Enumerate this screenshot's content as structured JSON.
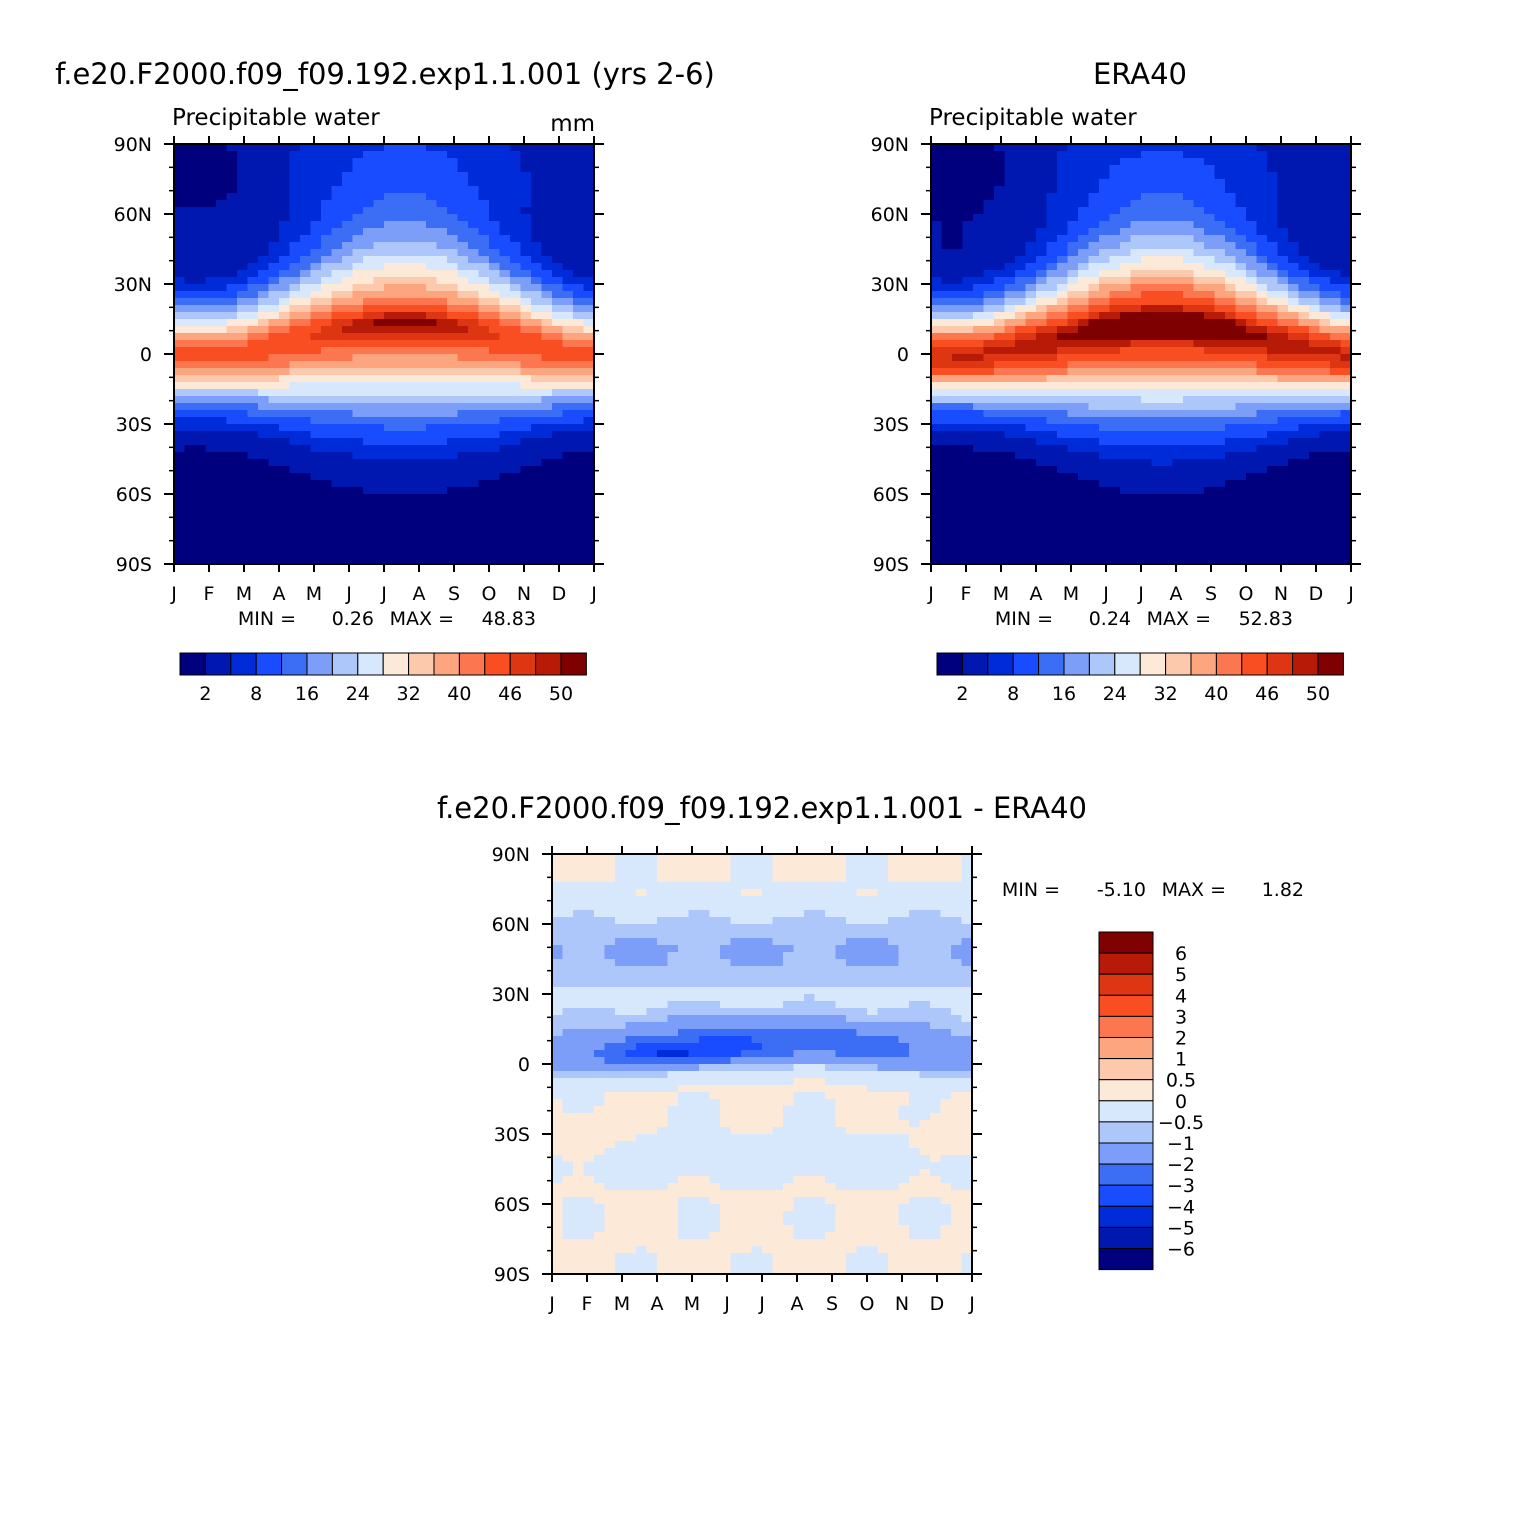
{
  "chart_data": [
    {
      "type": "heatmap",
      "title": "f.e20.F2000.f09_f09.192.exp1.1.001 (yrs 2-6)",
      "subtitle": "Precipitable water",
      "units": "mm",
      "x": [
        "J",
        "F",
        "M",
        "A",
        "M",
        "J",
        "J",
        "A",
        "S",
        "O",
        "N",
        "D",
        "J"
      ],
      "y_ticks": [
        "90N",
        "60N",
        "30N",
        "0",
        "30S",
        "60S",
        "90S"
      ],
      "stats": {
        "min_label": "MIN =",
        "min_value": "0.26",
        "max_label": "MAX =",
        "max_value": "48.83"
      },
      "field": {
        "min": 0.26,
        "max": 48.83,
        "peak_value": 48.5,
        "equator_value": 41.5,
        "polar_value_south": 1.0,
        "polar_value_north": 3.5
      },
      "colorbar": {
        "ticks": [
          "2",
          "8",
          "16",
          "24",
          "32",
          "40",
          "46",
          "50"
        ],
        "colors": [
          "#00007f",
          "#0018b0",
          "#002bd9",
          "#1a4cff",
          "#3c6df5",
          "#7c9ef8",
          "#adc7fb",
          "#d7e8fd",
          "#fde9d8",
          "#fdc9ad",
          "#fca57f",
          "#fc7750",
          "#f94d22",
          "#de3512",
          "#b71a06",
          "#7f0000"
        ]
      }
    },
    {
      "type": "heatmap",
      "title": "ERA40",
      "subtitle": "Precipitable water",
      "x": [
        "J",
        "F",
        "M",
        "A",
        "M",
        "J",
        "J",
        "A",
        "S",
        "O",
        "N",
        "D",
        "J"
      ],
      "y_ticks": [
        "90N",
        "60N",
        "30N",
        "0",
        "30S",
        "60S",
        "90S"
      ],
      "stats": {
        "min_label": "MIN =",
        "min_value": "0.24",
        "max_label": "MAX =",
        "max_value": "52.83"
      },
      "field": {
        "min": 0.24,
        "max": 52.83,
        "peak_value": 52.5,
        "equator_value": 46.0,
        "polar_value_south": 0.8,
        "polar_value_north": 3.0
      },
      "colorbar": {
        "ticks": [
          "2",
          "8",
          "16",
          "24",
          "32",
          "40",
          "46",
          "50"
        ],
        "colors": [
          "#00007f",
          "#0018b0",
          "#002bd9",
          "#1a4cff",
          "#3c6df5",
          "#7c9ef8",
          "#adc7fb",
          "#d7e8fd",
          "#fde9d8",
          "#fdc9ad",
          "#fca57f",
          "#fc7750",
          "#f94d22",
          "#de3512",
          "#b71a06",
          "#7f0000"
        ]
      }
    },
    {
      "type": "heatmap",
      "title": "f.e20.F2000.f09_f09.192.exp1.1.001 - ERA40",
      "x": [
        "J",
        "F",
        "M",
        "A",
        "M",
        "J",
        "J",
        "A",
        "S",
        "O",
        "N",
        "D",
        "J"
      ],
      "y_ticks": [
        "90N",
        "60N",
        "30N",
        "0",
        "30S",
        "60S",
        "90S"
      ],
      "stats": {
        "min_label": "MIN =",
        "min_value": "-5.10",
        "max_label": "MAX =",
        "max_value": "1.82"
      },
      "field": {
        "min": -5.1,
        "max": 1.82
      },
      "colorbar": {
        "ticks": [
          "6",
          "5",
          "4",
          "3",
          "2",
          "1",
          "0.5",
          "0",
          "-0.5",
          "-1",
          "-2",
          "-3",
          "-4",
          "-5",
          "-6"
        ],
        "colors": [
          "#7f0000",
          "#b71a06",
          "#de3512",
          "#f94d22",
          "#fc7750",
          "#fca57f",
          "#fdc9ad",
          "#fde9d8",
          "#d7e8fd",
          "#adc7fb",
          "#7c9ef8",
          "#3c6df5",
          "#1a4cff",
          "#002bd9",
          "#0018b0",
          "#00007f"
        ]
      }
    }
  ]
}
